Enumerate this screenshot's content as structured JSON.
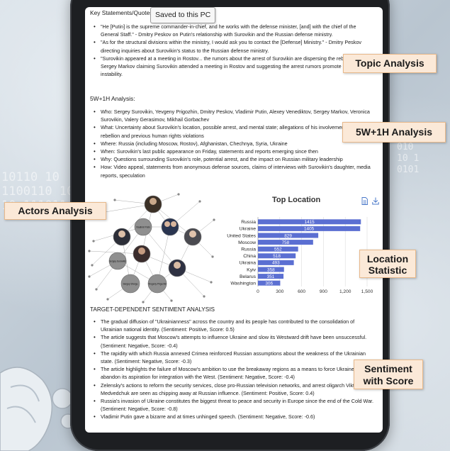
{
  "tooltip": {
    "text": "Saved to this PC"
  },
  "key_statements": {
    "title": "Key Statements/Quotes:",
    "items": [
      "\"He [Putin] is the supreme commander-in-chief, and he works with the defense minister, [and] with the chief of the General Staff.\" - Dmitry Peskov on Putin's relationship with Surovikin and the Russian defense ministry.",
      "\"As for the structural divisions within the ministry, I would ask you to contact the [Defense] Ministry.\" - Dmitry Peskov directing inquiries about Surovikin's status to the Russian defense ministry.",
      "\"Surovikin appeared at a meeting in Rostov... the rumors about the arrest of Surovikin are dispersing the rebellion.\" - Sergey Markov claiming Surovikin attended a meeting in Rostov and suggesting the arrest rumors promote political instability."
    ]
  },
  "w5h1": {
    "title": "5W+1H Analysis:",
    "items": [
      "Who: Sergey Surovikin, Yevgeny Prigozhin, Dmitry Peskov, Vladimir Putin, Alexey Venediktov, Sergey Markov, Veronica Surovikin, Valery Gerasimov, Mikhail Gorbachev",
      "What: Uncertainty about Surovikin's location, possible arrest, and mental state; allegations of his involvement in the rebellion and previous human rights violations",
      "Where: Russia (including Moscow, Rostov), Afghanistan, Chechnya, Syria, Ukraine",
      "When: Surovikin's last public appearance on Friday, statements and reports emerging since then",
      "Why: Questions surrounding Surovikin's role, potential arrest, and the impact on Russian military leadership",
      "How: Video appeal, statements from anonymous defense sources, claims of interviews with Surovikin's daughter, media reports, speculation"
    ]
  },
  "graph": {
    "labels": [
      "Vladimir Putin",
      "Sergey Surovikin",
      "Sergey Shoigu",
      "Yevgeny Prigozhin"
    ]
  },
  "chart_data": {
    "type": "bar",
    "orientation": "horizontal",
    "title": "Top Location",
    "categories": [
      "Russia",
      "Ukraine",
      "United States",
      "Moscow",
      "Russia",
      "China",
      "Ukraina",
      "Kyiv",
      "Belarus",
      "Washington"
    ],
    "values": [
      1415,
      1405,
      829,
      758,
      552,
      518,
      493,
      358,
      351,
      306
    ],
    "xticks": [
      0,
      300,
      600,
      900,
      1200,
      1500
    ],
    "xtick_labels": [
      "0",
      "300",
      "600",
      "900",
      "1,200",
      "1,500"
    ],
    "xlim": [
      0,
      1500
    ],
    "grid": true,
    "bar_color": "#5b6fd2"
  },
  "sentiment": {
    "title": "TARGET-DEPENDENT SENTIMENT ANALYSIS",
    "items": [
      "The gradual diffusion of \"Ukrainianness\" across the country and its people has contributed to the consolidation of Ukrainian national identity. (Sentiment: Positive, Score: 0.5)",
      "The article suggests that Moscow's attempts to influence Ukraine and slow its Westward drift have been unsuccessful. (Sentiment: Negative, Score: -0.4)",
      "The rapidity with which Russia annexed Crimea reinforced Russian assumptions about the weakness of the Ukrainian state. (Sentiment: Negative, Score: -0.3)",
      "The article highlights the failure of Moscow's ambition to use the breakaway regions as a means to force Ukraine to abandon its aspiration for integration with the West. (Sentiment: Negative, Score: -0.4)",
      "Zelensky's actions to reform the security services, close pro-Russian television networks, and arrest oligarch Viktor Medvedchuk are seen as chipping away at Russian influence. (Sentiment: Positive, Score: 0.4)",
      "Russia's invasion of Ukraine constitutes the biggest threat to peace and security in Europe since the end of the Cold War. (Sentiment: Negative, Score: -0.8)",
      "Vladimir Putin gave a bizarre and at times unhinged speech. (Sentiment: Negative, Score: -0.6)"
    ]
  },
  "callouts": {
    "topic": "Topic Analysis",
    "w5h1": "5W+1H Analysis",
    "actors": "Actors Analysis",
    "location_1": "Location",
    "location_2": "Statistic",
    "sentiment_1": "Sentiment",
    "sentiment_2": "with Score"
  },
  "icons": {
    "document": "document-icon",
    "download": "download-icon"
  },
  "colors": {
    "callout_bg": "#fbe9d8",
    "callout_border": "#e8b98b",
    "bar": "#5b6fd2"
  }
}
